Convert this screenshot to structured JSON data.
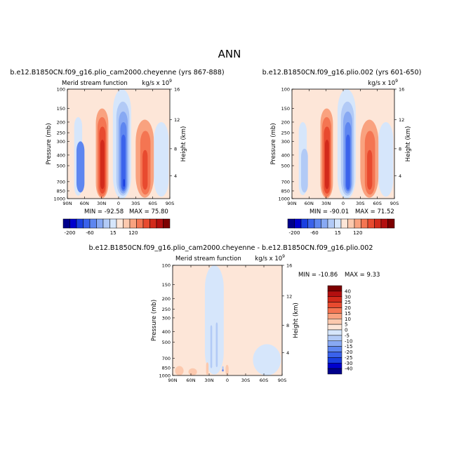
{
  "page_title": "ANN",
  "colors": {
    "neg": [
      "#00008b",
      "#0000cd",
      "#1a3fe0",
      "#3a62eb",
      "#5e86f0",
      "#88a9f3",
      "#b2caf6",
      "#d6e6fb"
    ],
    "pos": [
      "#fde6d8",
      "#fcc9ae",
      "#f9a27f",
      "#f47552",
      "#e84a2f",
      "#d22a1b",
      "#b30f0f",
      "#7d0000"
    ]
  },
  "chart_data": [
    {
      "id": "left",
      "type": "heatmap",
      "heading": "b.e12.B1850CN.f09_g16.plio_cam2000.cheyenne (yrs 867-888)",
      "left_text": "Merid stream function",
      "units": "kg/s x 10",
      "units_exp": "9",
      "ylabel": "Pressure (mb)",
      "y2label": "Height (km)",
      "xticks": [
        "90N",
        "60N",
        "30N",
        "0",
        "30S",
        "60S",
        "90S"
      ],
      "yticks": [
        "100",
        "150",
        "200",
        "250",
        "300",
        "400",
        "500",
        "700",
        "850",
        "1000"
      ],
      "y2ticks": [
        "16",
        "12",
        "8",
        "4"
      ],
      "min_label": "MIN = -92.58",
      "max_label": "MAX = 75.80",
      "xlim": [
        -90,
        90
      ],
      "ylim": [
        100,
        1000
      ],
      "cells": [
        {
          "band": 7,
          "lat": [
            -78,
            -64
          ],
          "p": [
            180,
            940
          ]
        },
        {
          "band": 4,
          "lat": [
            -74,
            -60
          ],
          "p": [
            300,
            880
          ]
        },
        {
          "band": 10,
          "lat": [
            -40,
            -18
          ],
          "p": [
            150,
            990
          ]
        },
        {
          "band": 11,
          "lat": [
            -37,
            -21
          ],
          "p": [
            180,
            960
          ]
        },
        {
          "band": 12,
          "lat": [
            -34,
            -23
          ],
          "p": [
            220,
            900
          ]
        },
        {
          "band": 13,
          "lat": [
            -32,
            -25
          ],
          "p": [
            290,
            820
          ]
        },
        {
          "band": 7,
          "lat": [
            -10,
            22
          ],
          "p": [
            100,
            1000
          ]
        },
        {
          "band": 6,
          "lat": [
            -4,
            19
          ],
          "p": [
            130,
            940
          ]
        },
        {
          "band": 5,
          "lat": [
            0,
            16
          ],
          "p": [
            160,
            900
          ]
        },
        {
          "band": 4,
          "lat": [
            3,
            14
          ],
          "p": [
            200,
            860
          ]
        },
        {
          "band": 3,
          "lat": [
            5,
            12
          ],
          "p": [
            260,
            830
          ]
        },
        {
          "band": 2,
          "lat": [
            8,
            11
          ],
          "p": [
            660,
            780
          ]
        },
        {
          "band": 10,
          "lat": [
            30,
            62
          ],
          "p": [
            190,
            980
          ]
        },
        {
          "band": 11,
          "lat": [
            38,
            56
          ],
          "p": [
            240,
            920
          ]
        },
        {
          "band": 12,
          "lat": [
            42,
            51
          ],
          "p": [
            360,
            830
          ]
        },
        {
          "band": 7,
          "lat": [
            62,
            88
          ],
          "p": [
            200,
            960
          ]
        }
      ]
    },
    {
      "id": "right",
      "type": "heatmap",
      "heading": "b.e12.B1850CN.f09_g16.plio.002 (yrs 601-650)",
      "left_text": "",
      "units": "kg/s x 10",
      "units_exp": "9",
      "ylabel": "Pressure (mb)",
      "y2label": "Height (km)",
      "xticks": [
        "90N",
        "60N",
        "30N",
        "0",
        "30S",
        "60S",
        "90S"
      ],
      "yticks": [
        "100",
        "150",
        "200",
        "250",
        "300",
        "400",
        "500",
        "700",
        "850",
        "1000"
      ],
      "y2ticks": [
        "16",
        "12",
        "8",
        "4"
      ],
      "min_label": "MIN = -90.01",
      "max_label": "MAX = 71.52",
      "xlim": [
        -90,
        90
      ],
      "ylim": [
        100,
        1000
      ],
      "cells": [
        {
          "band": 7,
          "lat": [
            -78,
            -64
          ],
          "p": [
            200,
            930
          ]
        },
        {
          "band": 6,
          "lat": [
            -74,
            -62
          ],
          "p": [
            350,
            880
          ]
        },
        {
          "band": 10,
          "lat": [
            -40,
            -18
          ],
          "p": [
            150,
            990
          ]
        },
        {
          "band": 11,
          "lat": [
            -37,
            -21
          ],
          "p": [
            180,
            960
          ]
        },
        {
          "band": 12,
          "lat": [
            -34,
            -23
          ],
          "p": [
            220,
            900
          ]
        },
        {
          "band": 13,
          "lat": [
            -32,
            -25
          ],
          "p": [
            290,
            820
          ]
        },
        {
          "band": 7,
          "lat": [
            -10,
            22
          ],
          "p": [
            100,
            1000
          ]
        },
        {
          "band": 6,
          "lat": [
            -4,
            19
          ],
          "p": [
            130,
            940
          ]
        },
        {
          "band": 5,
          "lat": [
            0,
            16
          ],
          "p": [
            160,
            900
          ]
        },
        {
          "band": 4,
          "lat": [
            3,
            14
          ],
          "p": [
            200,
            860
          ]
        },
        {
          "band": 3,
          "lat": [
            5,
            12
          ],
          "p": [
            260,
            830
          ]
        },
        {
          "band": 10,
          "lat": [
            30,
            62
          ],
          "p": [
            190,
            980
          ]
        },
        {
          "band": 11,
          "lat": [
            38,
            56
          ],
          "p": [
            240,
            920
          ]
        },
        {
          "band": 12,
          "lat": [
            42,
            51
          ],
          "p": [
            360,
            830
          ]
        },
        {
          "band": 7,
          "lat": [
            62,
            88
          ],
          "p": [
            200,
            960
          ]
        }
      ]
    },
    {
      "id": "diff",
      "type": "heatmap",
      "heading": "b.e12.B1850CN.f09_g16.plio_cam2000.cheyenne - b.e12.B1850CN.f09_g16.plio.002",
      "left_text": "Merid stream function",
      "units": "kg/s x 10",
      "units_exp": "9",
      "ylabel": "Pressure (mb)",
      "y2label": "Height (km)",
      "xticks": [
        "90N",
        "60N",
        "30N",
        "0",
        "30S",
        "60S",
        "90S"
      ],
      "yticks": [
        "100",
        "150",
        "200",
        "250",
        "300",
        "400",
        "500",
        "700",
        "850",
        "1000"
      ],
      "y2ticks": [
        "16",
        "12",
        "8",
        "4"
      ],
      "min_label": "MIN = -10.86",
      "max_label": "MAX =   9.33",
      "xlim": [
        -90,
        90
      ],
      "ylim": [
        100,
        1000
      ],
      "cells": [
        {
          "band": 7,
          "lat": [
            -37,
            -6
          ],
          "p": [
            100,
            980
          ]
        },
        {
          "band": 7,
          "lat": [
            42,
            88
          ],
          "p": [
            520,
            1000
          ]
        },
        {
          "band": 6,
          "lat": [
            -28,
            -25
          ],
          "p": [
            350,
            860
          ]
        },
        {
          "band": 6,
          "lat": [
            -19,
            -16
          ],
          "p": [
            330,
            840
          ]
        },
        {
          "band": 6,
          "lat": [
            -9,
            -6
          ],
          "p": [
            820,
            900
          ]
        },
        {
          "band": 4,
          "lat": [
            -9,
            -6
          ],
          "p": [
            880,
            920
          ]
        },
        {
          "band": 9,
          "lat": [
            -35,
            -31
          ],
          "p": [
            760,
            990
          ]
        },
        {
          "band": 9,
          "lat": [
            -3,
            2
          ],
          "p": [
            800,
            990
          ]
        },
        {
          "band": 9,
          "lat": [
            -86,
            -72
          ],
          "p": [
            820,
            1000
          ]
        },
        {
          "band": 9,
          "lat": [
            -64,
            -50
          ],
          "p": [
            860,
            1000
          ]
        }
      ]
    }
  ],
  "colorbars": [
    {
      "id": "left-bar",
      "orientation": "horizontal",
      "labels": [
        "-200",
        "-60",
        "15",
        "120"
      ]
    },
    {
      "id": "right-bar",
      "orientation": "horizontal",
      "labels": [
        "-200",
        "-60",
        "15",
        "120"
      ]
    },
    {
      "id": "diff-bar",
      "orientation": "vertical",
      "labels": [
        "40",
        "30",
        "25",
        "20",
        "15",
        "10",
        "5",
        "0",
        "-5",
        "-10",
        "-15",
        "-20",
        "-25",
        "-30",
        "-40"
      ]
    }
  ]
}
